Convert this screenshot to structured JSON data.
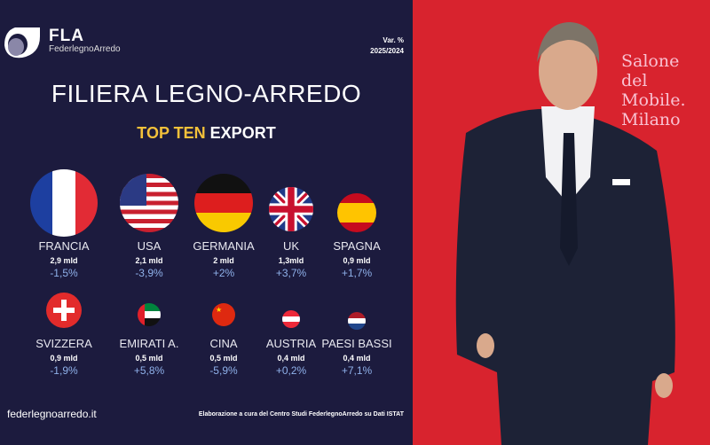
{
  "brand": {
    "name": "FLA",
    "full": "FederlegnoArredo"
  },
  "variation": {
    "label": "Var. %",
    "period": "2025/2024"
  },
  "title": "FILIERA LEGNO-ARREDO",
  "subtitle": {
    "highlight": "TOP TEN",
    "rest": "EXPORT"
  },
  "countries": [
    {
      "name": "FRANCIA",
      "value": "2,9 mld",
      "change": "-1,5%",
      "flag": "france"
    },
    {
      "name": "USA",
      "value": "2,1 mld",
      "change": "-3,9%",
      "flag": "usa"
    },
    {
      "name": "GERMANIA",
      "value": "2 mld",
      "change": "+2%",
      "flag": "germany"
    },
    {
      "name": "UK",
      "value": "1,3mld",
      "change": "+3,7%",
      "flag": "uk"
    },
    {
      "name": "SPAGNA",
      "value": "0,9 mld",
      "change": "+1,7%",
      "flag": "spain"
    },
    {
      "name": "SVIZZERA",
      "value": "0,9 mld",
      "change": "-1,9%",
      "flag": "switzerland"
    },
    {
      "name": "EMIRATI A.",
      "value": "0,5 mld",
      "change": "+5,8%",
      "flag": "uae"
    },
    {
      "name": "CINA",
      "value": "0,5 mld",
      "change": "-5,9%",
      "flag": "china"
    },
    {
      "name": "AUSTRIA",
      "value": "0,4 mld",
      "change": "+0,2%",
      "flag": "austria"
    },
    {
      "name": "PAESI BASSI",
      "value": "0,4 mld",
      "change": "+7,1%",
      "flag": "netherlands"
    }
  ],
  "footer": {
    "website": "federlegnoarredo.it",
    "source": "Elaborazione a cura del Centro Studi FederlegnoArredo su Dati ISTAT"
  },
  "photo": {
    "backdrop_text": [
      "Salone",
      "del Mobile.",
      "Milano"
    ]
  },
  "colors": {
    "background": "#1c1b3e",
    "accent": "#f3c13a",
    "change": "#8fb1ea",
    "photo_bg": "#d8232e"
  }
}
